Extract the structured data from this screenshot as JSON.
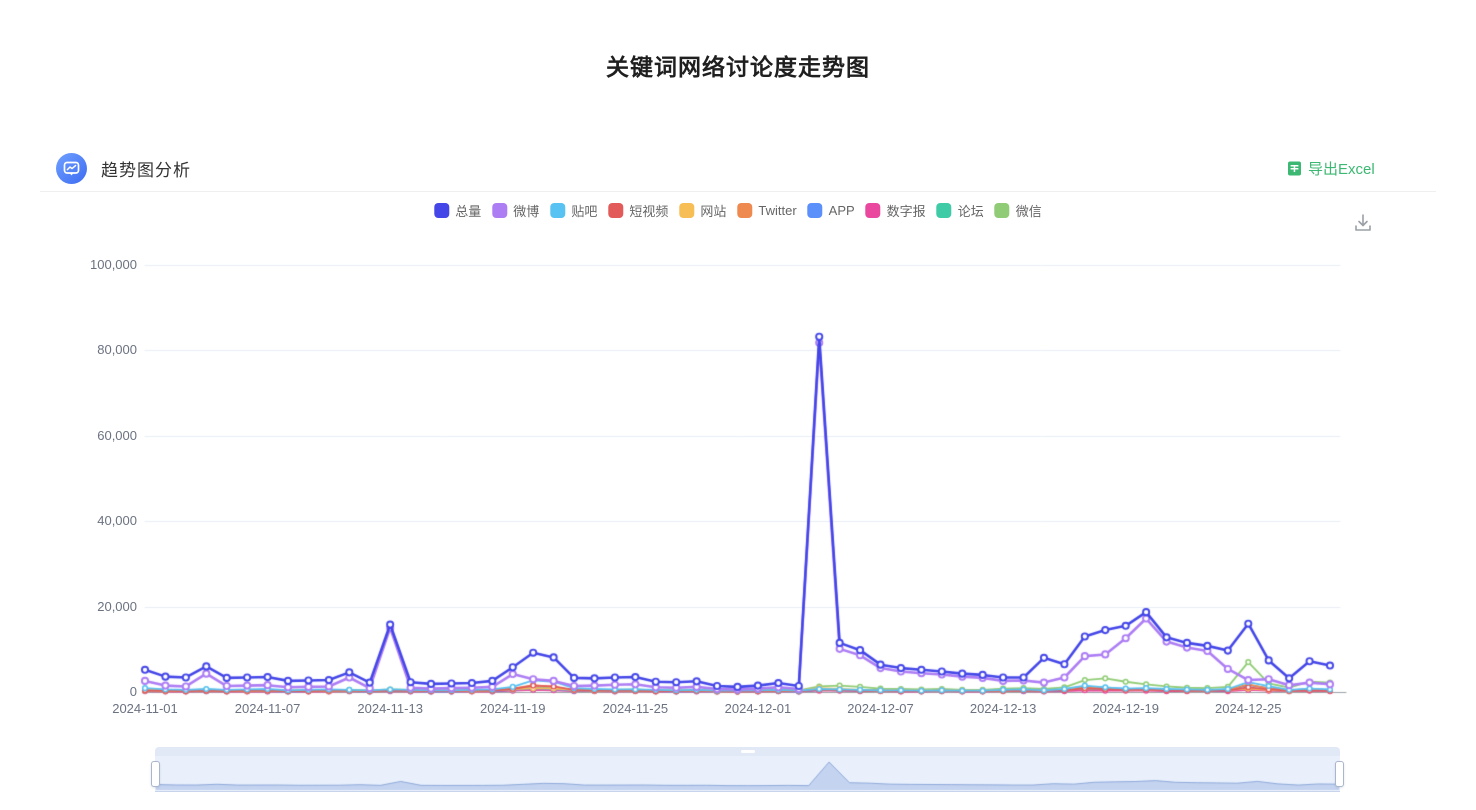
{
  "page_title": "关键词网络讨论度走势图",
  "section": {
    "title": "趋势图分析",
    "export_label": "导出Excel"
  },
  "icons": {
    "header": "trend-analysis-icon",
    "export": "excel-file-icon",
    "toolbox": "save-as-image-download-icon"
  },
  "colors": {
    "accent_blue": "#3D6BF2",
    "export_green": "#3CB873",
    "grid_line": "#E8ECF4",
    "axis_text": "#6b7280"
  },
  "datazoom": {
    "type": "slider"
  },
  "chart_data": {
    "type": "line",
    "title": "关键词网络讨论度走势图",
    "xlabel": "",
    "ylabel": "",
    "ylim": [
      0,
      100000
    ],
    "grid": true,
    "legend_position": "top",
    "y_tick_labels": [
      "0",
      "20,000",
      "40,000",
      "60,000",
      "80,000",
      "100,000"
    ],
    "x_tick_labels": [
      "2024-11-01",
      "2024-11-07",
      "2024-11-13",
      "2024-11-19",
      "2024-11-25",
      "2024-12-01",
      "2024-12-07",
      "2024-12-13",
      "2024-12-19",
      "2024-12-25"
    ],
    "x_tick_step": 6,
    "x": [
      "2024-11-01",
      "2024-11-02",
      "2024-11-03",
      "2024-11-04",
      "2024-11-05",
      "2024-11-06",
      "2024-11-07",
      "2024-11-08",
      "2024-11-09",
      "2024-11-10",
      "2024-11-11",
      "2024-11-12",
      "2024-11-13",
      "2024-11-14",
      "2024-11-15",
      "2024-11-16",
      "2024-11-17",
      "2024-11-18",
      "2024-11-19",
      "2024-11-20",
      "2024-11-21",
      "2024-11-22",
      "2024-11-23",
      "2024-11-24",
      "2024-11-25",
      "2024-11-26",
      "2024-11-27",
      "2024-11-28",
      "2024-11-29",
      "2024-11-30",
      "2024-12-01",
      "2024-12-02",
      "2024-12-03",
      "2024-12-04",
      "2024-12-05",
      "2024-12-06",
      "2024-12-07",
      "2024-12-08",
      "2024-12-09",
      "2024-12-10",
      "2024-12-11",
      "2024-12-12",
      "2024-12-13",
      "2024-12-14",
      "2024-12-15",
      "2024-12-16",
      "2024-12-17",
      "2024-12-18",
      "2024-12-19",
      "2024-12-20",
      "2024-12-21",
      "2024-12-22",
      "2024-12-23",
      "2024-12-24",
      "2024-12-25",
      "2024-12-26",
      "2024-12-27",
      "2024-12-28",
      "2024-12-29"
    ],
    "series": [
      {
        "name": "总量",
        "color": "#4446E8",
        "values": [
          5200,
          3600,
          3400,
          6000,
          3300,
          3400,
          3500,
          2600,
          2700,
          2800,
          4600,
          2200,
          15800,
          2300,
          1900,
          2000,
          2100,
          2600,
          5800,
          9200,
          8100,
          3300,
          3200,
          3400,
          3500,
          2400,
          2300,
          2500,
          1400,
          1200,
          1500,
          2100,
          1400,
          83200,
          11500,
          9800,
          6400,
          5600,
          5200,
          4800,
          4300,
          4000,
          3400,
          3400,
          8000,
          6500,
          13000,
          14500,
          15500,
          18700,
          12800,
          11500,
          10800,
          9700,
          16000,
          7400,
          3200,
          7200,
          6200
        ]
      },
      {
        "name": "微博",
        "color": "#AD7DF4",
        "values": [
          2600,
          1500,
          1300,
          4300,
          1400,
          1500,
          1600,
          1100,
          1200,
          1300,
          3400,
          900,
          15000,
          1000,
          800,
          900,
          1000,
          1200,
          4200,
          3000,
          2600,
          1400,
          1500,
          1700,
          1800,
          1100,
          1000,
          1200,
          700,
          600,
          800,
          1100,
          700,
          81800,
          10100,
          8600,
          5600,
          4800,
          4400,
          4100,
          3600,
          3300,
          2600,
          2700,
          2200,
          3400,
          8400,
          8800,
          12600,
          17200,
          11800,
          10400,
          9600,
          5400,
          2800,
          3000,
          1600,
          2200,
          1800
        ]
      },
      {
        "name": "贴吧",
        "color": "#58C2F2",
        "values": [
          900,
          600,
          500,
          700,
          500,
          600,
          700,
          400,
          500,
          600,
          500,
          400,
          600,
          500,
          400,
          400,
          500,
          600,
          1200,
          2700,
          2400,
          900,
          700,
          600,
          600,
          500,
          400,
          500,
          300,
          300,
          400,
          500,
          300,
          700,
          600,
          500,
          400,
          400,
          300,
          400,
          300,
          300,
          500,
          600,
          400,
          700,
          1500,
          1100,
          800,
          900,
          700,
          600,
          500,
          700,
          2300,
          1400,
          500,
          800,
          600
        ]
      },
      {
        "name": "短视频",
        "color": "#E25A5A",
        "values": [
          400,
          300,
          200,
          300,
          200,
          300,
          300,
          200,
          200,
          300,
          300,
          200,
          400,
          300,
          200,
          200,
          300,
          300,
          700,
          1500,
          1300,
          500,
          400,
          300,
          300,
          200,
          200,
          300,
          200,
          100,
          200,
          300,
          200,
          500,
          400,
          300,
          300,
          200,
          200,
          300,
          200,
          200,
          300,
          400,
          300,
          400,
          900,
          700,
          500,
          600,
          400,
          300,
          300,
          400,
          1100,
          600,
          300,
          400,
          300
        ]
      },
      {
        "name": "网站",
        "color": "#F6BE54",
        "values": [
          600,
          400,
          300,
          400,
          300,
          400,
          400,
          300,
          300,
          400,
          400,
          300,
          500,
          400,
          300,
          300,
          400,
          400,
          600,
          900,
          800,
          500,
          400,
          400,
          400,
          300,
          300,
          400,
          200,
          200,
          300,
          400,
          300,
          900,
          700,
          500,
          400,
          400,
          300,
          400,
          300,
          300,
          400,
          500,
          400,
          500,
          900,
          800,
          600,
          700,
          500,
          400,
          400,
          500,
          800,
          500,
          300,
          500,
          400
        ]
      },
      {
        "name": "Twitter",
        "color": "#EE8A4F",
        "values": [
          300,
          200,
          200,
          300,
          200,
          200,
          300,
          200,
          200,
          200,
          300,
          200,
          400,
          300,
          200,
          200,
          200,
          300,
          800,
          1600,
          1200,
          400,
          300,
          300,
          300,
          200,
          200,
          300,
          100,
          100,
          200,
          300,
          200,
          600,
          500,
          400,
          300,
          300,
          200,
          300,
          200,
          200,
          300,
          400,
          300,
          500,
          1100,
          900,
          600,
          700,
          500,
          400,
          300,
          500,
          1800,
          800,
          400,
          600,
          400
        ]
      },
      {
        "name": "APP",
        "color": "#5B8FF9",
        "values": [
          300,
          200,
          200,
          200,
          200,
          200,
          200,
          100,
          200,
          200,
          200,
          100,
          300,
          200,
          100,
          100,
          200,
          200,
          500,
          900,
          700,
          300,
          300,
          200,
          300,
          200,
          100,
          200,
          100,
          100,
          200,
          200,
          100,
          500,
          400,
          300,
          300,
          200,
          200,
          200,
          200,
          200,
          300,
          300,
          200,
          400,
          1300,
          1000,
          700,
          800,
          500,
          400,
          300,
          400,
          1600,
          900,
          400,
          700,
          500
        ]
      },
      {
        "name": "数字报",
        "color": "#E9489E",
        "values": [
          200,
          100,
          100,
          200,
          100,
          100,
          100,
          100,
          100,
          100,
          200,
          100,
          200,
          100,
          100,
          100,
          100,
          100,
          300,
          500,
          400,
          200,
          200,
          100,
          200,
          100,
          100,
          100,
          100,
          100,
          100,
          200,
          100,
          300,
          300,
          200,
          200,
          100,
          100,
          200,
          100,
          100,
          200,
          200,
          100,
          200,
          400,
          300,
          300,
          300,
          200,
          200,
          200,
          200,
          500,
          300,
          200,
          300,
          200
        ]
      },
      {
        "name": "论坛",
        "color": "#3FCBA5",
        "values": [
          400,
          300,
          200,
          300,
          200,
          300,
          300,
          200,
          200,
          300,
          300,
          200,
          400,
          300,
          200,
          200,
          300,
          300,
          400,
          600,
          500,
          300,
          300,
          300,
          300,
          200,
          200,
          300,
          200,
          100,
          200,
          300,
          200,
          600,
          500,
          400,
          300,
          300,
          200,
          300,
          200,
          200,
          300,
          300,
          300,
          400,
          700,
          600,
          400,
          500,
          300,
          300,
          300,
          400,
          600,
          400,
          200,
          400,
          300
        ]
      },
      {
        "name": "微信",
        "color": "#90CC75",
        "values": [
          700,
          500,
          400,
          600,
          400,
          500,
          500,
          400,
          400,
          500,
          500,
          400,
          600,
          500,
          400,
          400,
          500,
          500,
          800,
          1100,
          900,
          600,
          500,
          500,
          600,
          400,
          400,
          500,
          300,
          300,
          400,
          600,
          400,
          1300,
          1500,
          1200,
          800,
          700,
          600,
          700,
          500,
          500,
          800,
          900,
          700,
          1100,
          2800,
          3200,
          2400,
          1800,
          1300,
          1000,
          900,
          1200,
          7000,
          2000,
          1000,
          2400,
          2200
        ]
      }
    ]
  }
}
